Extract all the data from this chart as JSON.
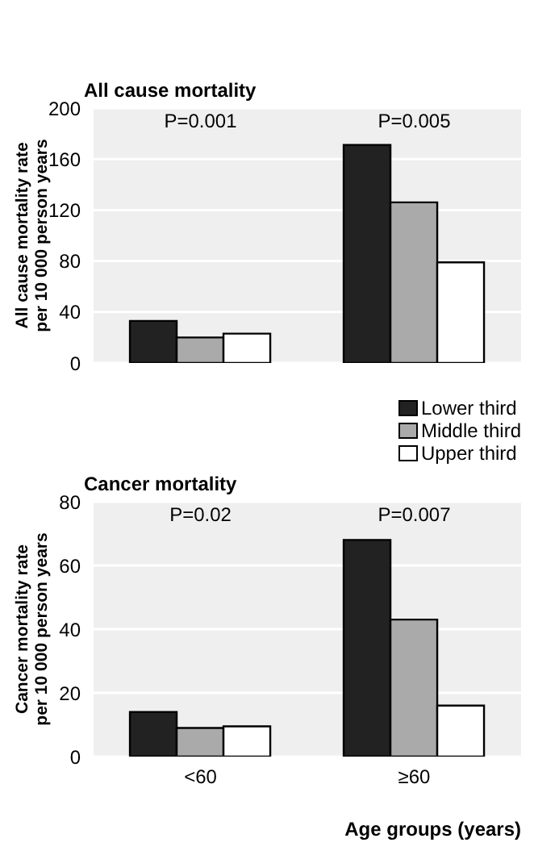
{
  "chart_data": [
    {
      "type": "bar",
      "title": "All cause mortality",
      "ylabel": "All cause mortality rate per 10 000 person years",
      "series": [
        {
          "name": "Lower third",
          "color": "#222222",
          "values": [
            33,
            171
          ]
        },
        {
          "name": "Middle third",
          "color": "#aaaaaa",
          "values": [
            20,
            126
          ]
        },
        {
          "name": "Upper third",
          "color": "#ffffff",
          "values": [
            23,
            79
          ]
        }
      ],
      "ylim": [
        0,
        200
      ],
      "yticks": [
        0,
        40,
        80,
        120,
        160,
        200
      ],
      "grid": "y",
      "tick_labels": "y",
      "legend": "bottom right",
      "annotations": [
        "P=0.001",
        "P=0.005"
      ]
    },
    {
      "type": "bar",
      "title": "Cancer mortality",
      "ylabel": "Cancer mortality rate per 10 000 person years",
      "xlabel": "Age groups (years)",
      "categories": [
        "<60",
        "≥60"
      ],
      "series": [
        {
          "color": "#222222",
          "values": [
            14,
            68
          ]
        },
        {
          "color": "#aaaaaa",
          "values": [
            9,
            43
          ]
        },
        {
          "color": "#ffffff",
          "values": [
            9.5,
            16
          ]
        }
      ],
      "ylim": [
        0,
        80
      ],
      "yticks": [
        0,
        20,
        40,
        60,
        80
      ],
      "grid": "y",
      "annotations": [
        "P=0.02",
        "P=0.007"
      ]
    }
  ]
}
